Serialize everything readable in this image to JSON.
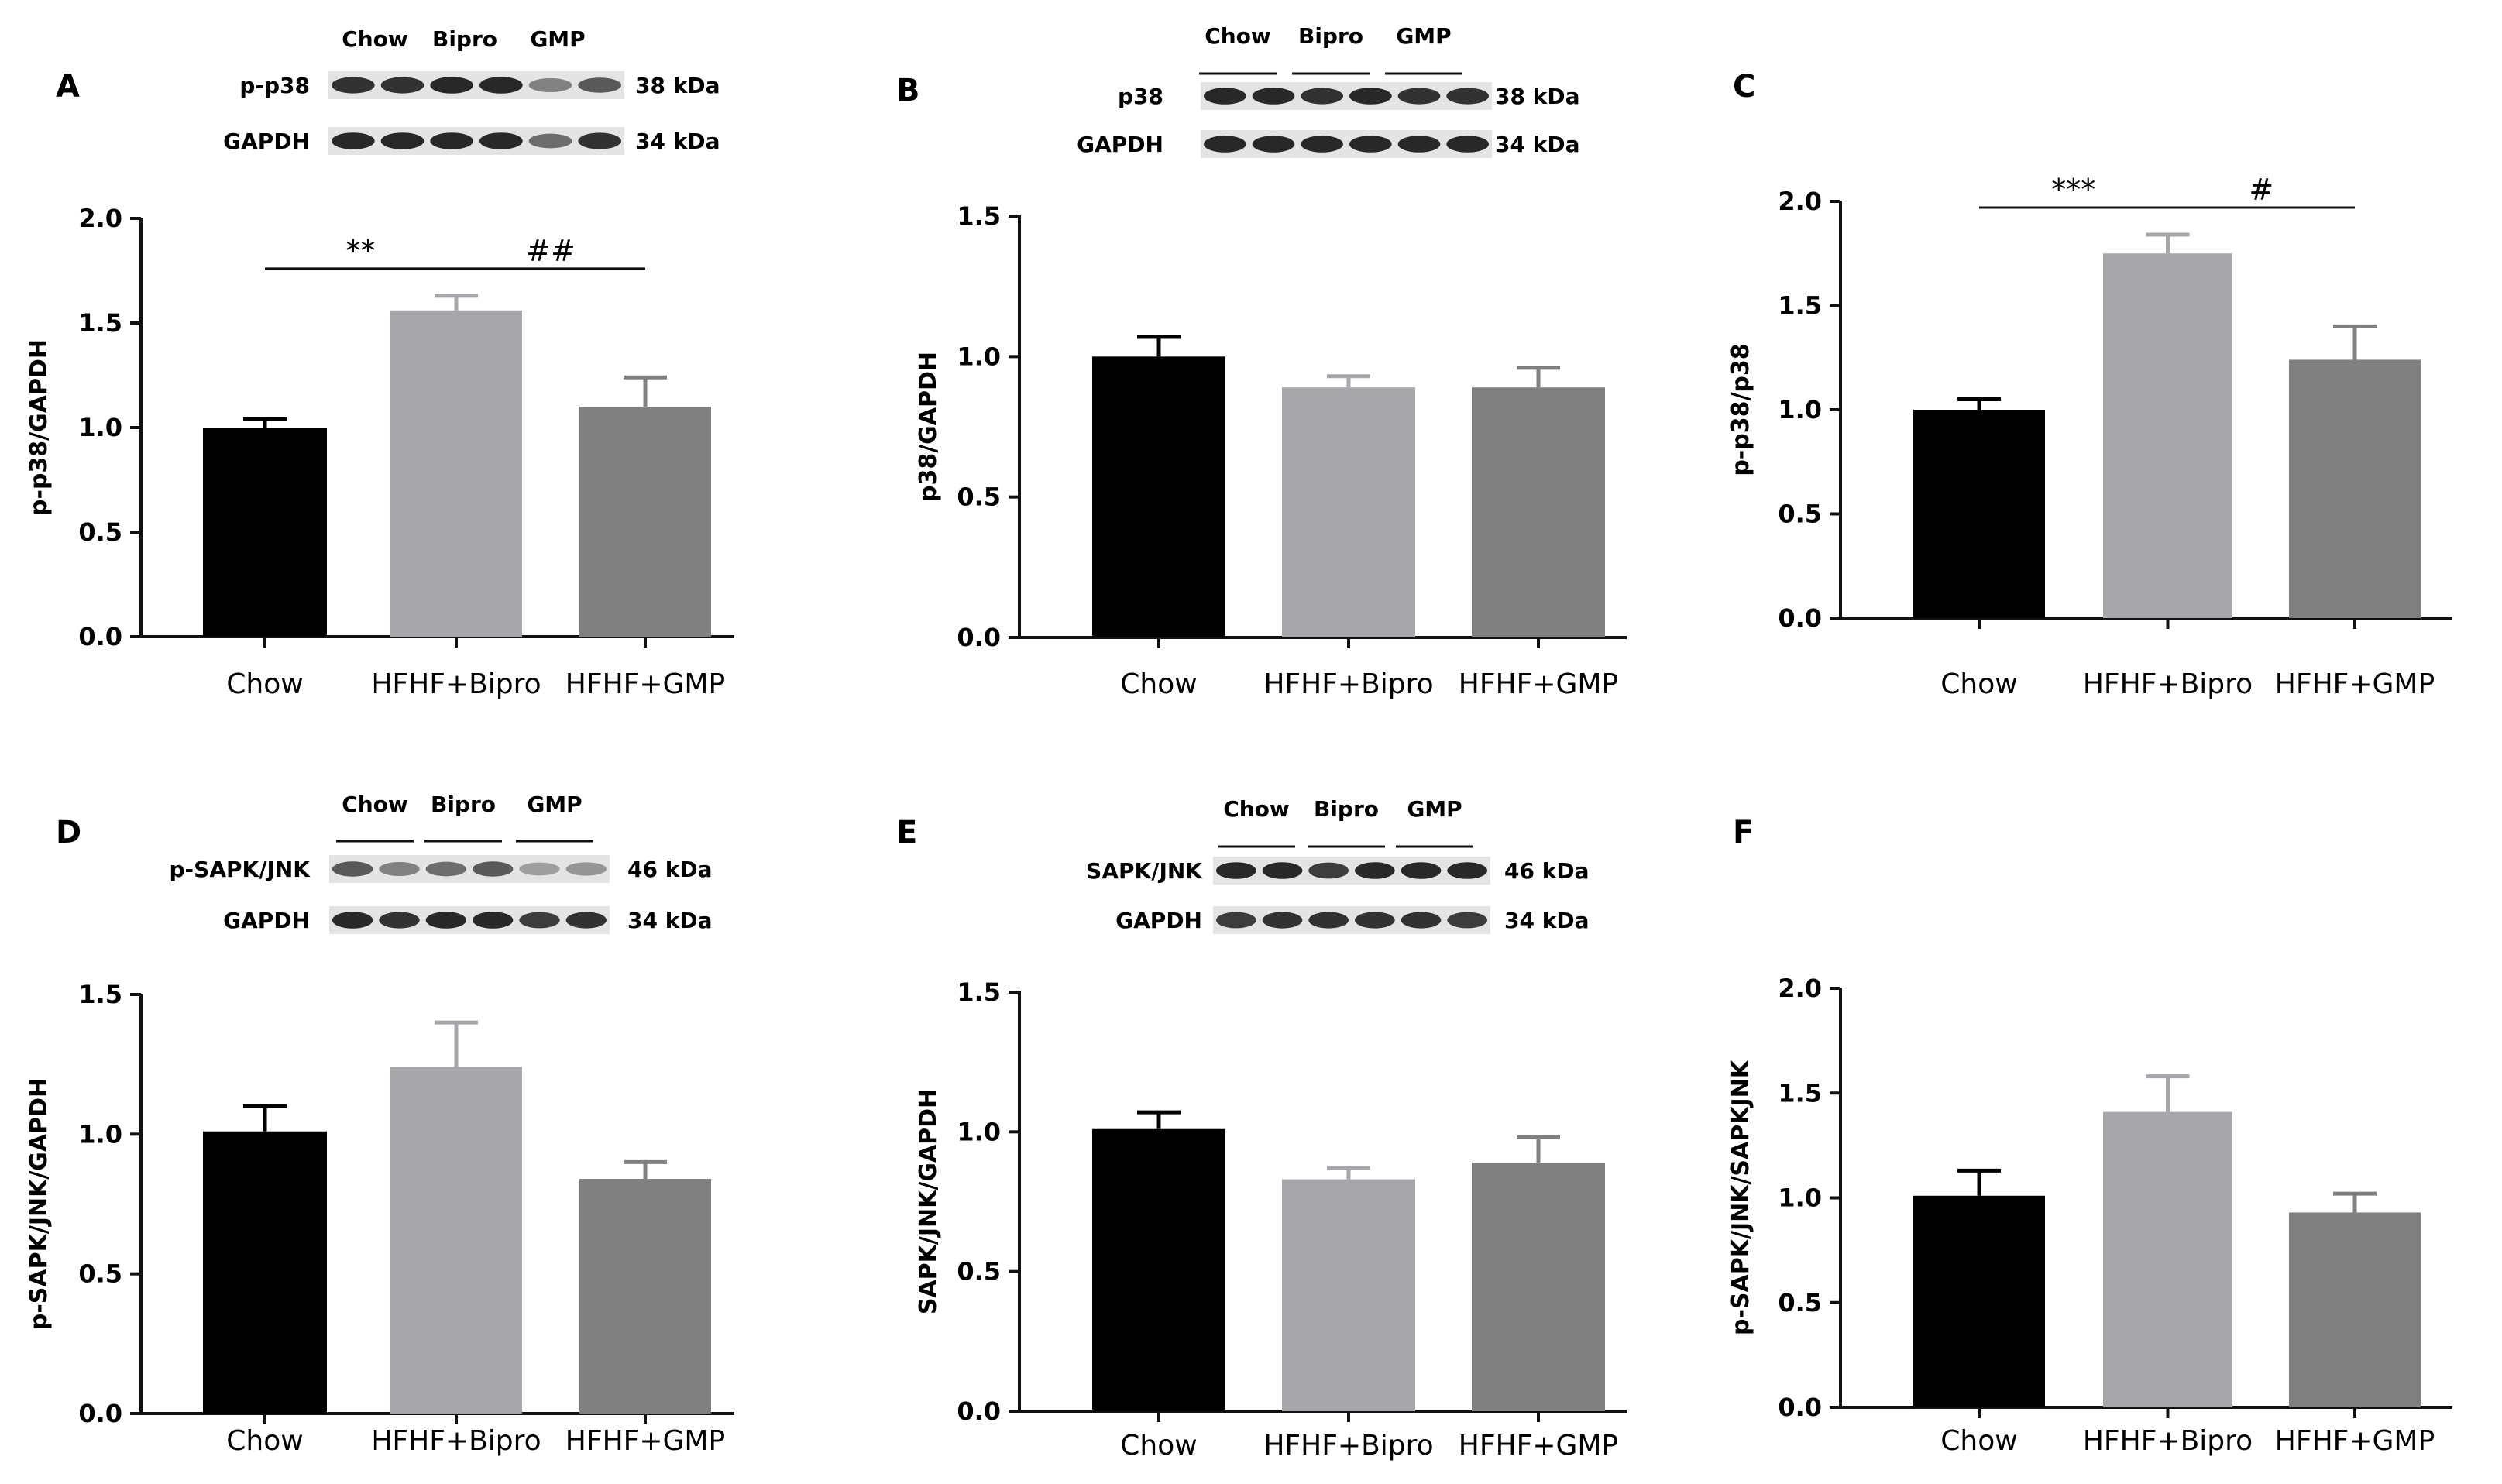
{
  "colors": {
    "chow": "#000000",
    "bipro": "#a7a6ab",
    "gmp": "#808080",
    "axis": "#111111",
    "band": "#1e1e1e"
  },
  "chart_data": [
    {
      "panel": "A",
      "type": "bar",
      "ylabel": "p-p38/GAPDH",
      "categories": [
        "Chow",
        "HFHF+Bipro",
        "HFHF+GMP"
      ],
      "values": [
        1.0,
        1.56,
        1.1
      ],
      "errors": [
        0.04,
        0.07,
        0.14
      ],
      "ylim": [
        0,
        2.0
      ],
      "yticks": [
        "0.0",
        "0.5",
        "1.0",
        "1.5",
        "2.0"
      ],
      "significance": [
        {
          "from": 0,
          "to": 1,
          "label": "**"
        },
        {
          "from": 1,
          "to": 2,
          "label": "##"
        }
      ],
      "blot": {
        "lanes": [
          "Chow",
          "Bipro",
          "GMP"
        ],
        "rows": [
          {
            "protein": "p-p38",
            "kda": "38 kDa",
            "intensity": [
              0.9,
              0.9,
              0.95,
              0.95,
              0.5,
              0.7
            ]
          },
          {
            "protein": "GAPDH",
            "kda": "34 kDa",
            "intensity": [
              0.95,
              0.95,
              0.95,
              0.95,
              0.6,
              0.9
            ]
          }
        ]
      }
    },
    {
      "panel": "B",
      "type": "bar",
      "ylabel": "p38/GAPDH",
      "categories": [
        "Chow",
        "HFHF+Bipro",
        "HFHF+GMP"
      ],
      "values": [
        1.0,
        0.89,
        0.89
      ],
      "errors": [
        0.07,
        0.04,
        0.07
      ],
      "ylim": [
        0,
        1.5
      ],
      "yticks": [
        "0.0",
        "0.5",
        "1.0",
        "1.5"
      ],
      "significance": [],
      "blot": {
        "lanes": [
          "Chow",
          "Bipro",
          "GMP"
        ],
        "rows": [
          {
            "protein": "p38",
            "kda": "38 kDa",
            "intensity": [
              0.95,
              0.95,
              0.9,
              0.95,
              0.9,
              0.9
            ]
          },
          {
            "protein": "GAPDH",
            "kda": "34 kDa",
            "intensity": [
              0.95,
              0.95,
              0.95,
              0.95,
              0.95,
              0.95
            ]
          }
        ]
      }
    },
    {
      "panel": "C",
      "type": "bar",
      "ylabel": "p-p38/p38",
      "categories": [
        "Chow",
        "HFHF+Bipro",
        "HFHF+GMP"
      ],
      "values": [
        1.0,
        1.75,
        1.24
      ],
      "errors": [
        0.05,
        0.09,
        0.16
      ],
      "ylim": [
        0,
        2.0
      ],
      "yticks": [
        "0.0",
        "0.5",
        "1.0",
        "1.5",
        "2.0"
      ],
      "significance": [
        {
          "from": 0,
          "to": 1,
          "label": "***"
        },
        {
          "from": 1,
          "to": 2,
          "label": "#"
        }
      ]
    },
    {
      "panel": "D",
      "type": "bar",
      "ylabel": "p-SAPK/JNK/GAPDH",
      "categories": [
        "Chow",
        "HFHF+Bipro",
        "HFHF+GMP"
      ],
      "values": [
        1.01,
        1.24,
        0.84
      ],
      "errors": [
        0.09,
        0.16,
        0.06
      ],
      "ylim": [
        0,
        1.5
      ],
      "yticks": [
        "0.0",
        "0.5",
        "1.0",
        "1.5"
      ],
      "significance": [],
      "blot": {
        "lanes": [
          "Chow",
          "Bipro",
          "GMP"
        ],
        "rows": [
          {
            "protein": "p-SAPK/JNK",
            "kda": "46 kDa",
            "intensity": [
              0.7,
              0.5,
              0.6,
              0.7,
              0.35,
              0.4
            ]
          },
          {
            "protein": "GAPDH",
            "kda": "34 kDa",
            "intensity": [
              0.95,
              0.9,
              0.95,
              0.95,
              0.85,
              0.9
            ]
          }
        ]
      }
    },
    {
      "panel": "E",
      "type": "bar",
      "ylabel": "SAPK/JNK/GAPDH",
      "categories": [
        "Chow",
        "HFHF+Bipro",
        "HFHF+GMP"
      ],
      "values": [
        1.01,
        0.83,
        0.89
      ],
      "errors": [
        0.06,
        0.04,
        0.09
      ],
      "ylim": [
        0,
        1.5
      ],
      "yticks": [
        "0.0",
        "0.5",
        "1.0",
        "1.5"
      ],
      "significance": [],
      "blot": {
        "lanes": [
          "Chow",
          "Bipro",
          "GMP"
        ],
        "rows": [
          {
            "protein": "SAPK/JNK",
            "kda": "46 kDa",
            "intensity": [
              0.95,
              0.95,
              0.85,
              0.95,
              0.95,
              0.95
            ]
          },
          {
            "protein": "GAPDH",
            "kda": "34 kDa",
            "intensity": [
              0.85,
              0.9,
              0.9,
              0.9,
              0.9,
              0.85
            ]
          }
        ]
      }
    },
    {
      "panel": "F",
      "type": "bar",
      "ylabel": "p-SAPK/JNK/SAPKJNK",
      "categories": [
        "Chow",
        "HFHF+Bipro",
        "HFHF+GMP"
      ],
      "values": [
        1.01,
        1.41,
        0.93
      ],
      "errors": [
        0.12,
        0.17,
        0.09
      ],
      "ylim": [
        0,
        2.0
      ],
      "yticks": [
        "0.0",
        "0.5",
        "1.0",
        "1.5",
        "2.0"
      ],
      "significance": []
    }
  ]
}
